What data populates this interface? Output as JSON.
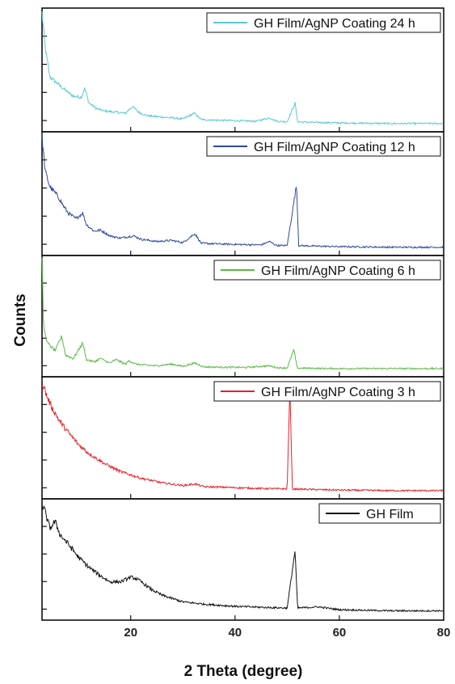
{
  "chart_data": {
    "type": "line",
    "xlabel": "2 Theta (degree)",
    "ylabel": "Counts",
    "xlim": [
      3,
      80
    ],
    "x_ticks": [
      20,
      40,
      60,
      80
    ],
    "y_tick_labels": false,
    "legend_position": "top-right",
    "layout": "stacked panels sharing x axis",
    "series": [
      {
        "name": "GH Film/AgNP Coating 24 h",
        "color": "#5bc8d0",
        "x": [
          3.0,
          3.6,
          4.5,
          6,
          7.5,
          9,
          10.5,
          11.2,
          12,
          13.5,
          15,
          17,
          19,
          20.3,
          21.5,
          23,
          25,
          27.8,
          30,
          32.2,
          33.5,
          36,
          40,
          44,
          46.6,
          48,
          50,
          51.5,
          52,
          55,
          60,
          70,
          80
        ],
        "y": [
          100,
          70,
          44,
          38,
          32,
          27,
          26,
          34,
          21,
          16,
          14,
          13,
          12,
          18,
          13,
          10,
          9,
          8,
          7,
          12,
          6.5,
          6,
          5.5,
          5,
          8,
          5,
          4.5,
          21,
          4.5,
          4,
          3.5,
          3,
          3
        ]
      },
      {
        "name": "GH Film/AgNP Coating 12 h",
        "color": "#2e4a9c",
        "x": [
          3.0,
          3.6,
          4.5,
          6,
          7,
          8,
          9.5,
          10.8,
          11.5,
          13,
          14.2,
          16,
          18,
          20.5,
          22,
          25,
          27.9,
          30,
          32.3,
          33.5,
          36,
          40,
          45,
          46.6,
          48,
          50,
          51.8,
          52.2,
          55,
          60,
          70,
          80
        ],
        "y": [
          100,
          70,
          56,
          48,
          40,
          33,
          28,
          33,
          23,
          17,
          18,
          13,
          11,
          13,
          10,
          8,
          9,
          7,
          15,
          6.5,
          6,
          5.5,
          5,
          8,
          4.5,
          4.5,
          58,
          4.5,
          4,
          3.5,
          3,
          3
        ]
      },
      {
        "name": "GH Film/AgNP Coating 6 h",
        "color": "#5db84a",
        "x": [
          3.0,
          3.3,
          4,
          5.5,
          6.8,
          7.5,
          9,
          10.8,
          11.5,
          13,
          14.2,
          16,
          17.2,
          19,
          19.7,
          21,
          23,
          25,
          27.9,
          30,
          32.3,
          34,
          38,
          42,
          46.6,
          48,
          50,
          51.3,
          51.9,
          55,
          60,
          70,
          80
        ],
        "y": [
          100,
          40,
          26,
          19,
          32,
          15,
          12,
          26,
          11,
          9,
          12,
          8,
          11,
          7,
          10,
          7,
          6,
          5.5,
          7,
          5,
          8,
          4.5,
          4.2,
          4,
          5.5,
          3.8,
          3.6,
          20,
          3.5,
          3.2,
          3,
          3,
          3
        ]
      },
      {
        "name": "GH Film/AgNP Coating 3 h",
        "color": "#e8202a",
        "x": [
          3.0,
          4,
          5,
          6.5,
          8,
          10,
          12,
          15,
          18,
          22,
          26,
          30,
          32.3,
          34,
          38,
          44,
          50,
          50.5,
          51,
          55,
          60,
          70,
          80
        ],
        "y": [
          100,
          86,
          76,
          64,
          55,
          44,
          36,
          27,
          20,
          14,
          10,
          7.5,
          9,
          6.5,
          6,
          5,
          4.5,
          95,
          4.5,
          4,
          3.5,
          3,
          3
        ]
      },
      {
        "name": "GH Film",
        "color": "#111111",
        "x": [
          3.0,
          3.5,
          4.5,
          5.5,
          6.5,
          8,
          10,
          12,
          14,
          16,
          18,
          20,
          21,
          22,
          24,
          26,
          28,
          30,
          34,
          40,
          46,
          50,
          51.5,
          52,
          54,
          56,
          60,
          70,
          80
        ],
        "y": [
          100,
          94,
          78,
          84,
          72,
          64,
          52,
          43,
          36,
          30,
          30,
          34,
          33,
          30,
          23,
          18,
          15,
          12,
          10,
          8,
          7,
          6.5,
          58,
          6.5,
          7,
          7.5,
          5,
          4,
          4
        ]
      }
    ]
  }
}
